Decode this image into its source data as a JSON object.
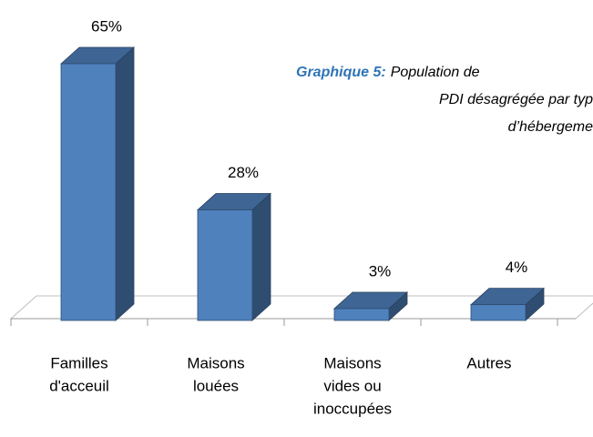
{
  "chart_data": {
    "type": "bar3d",
    "caption": {
      "label": "Graphique 5:",
      "lines": [
        "Population de",
        "PDI désagrégée par typ",
        "d’hébergeme"
      ]
    },
    "categories": [
      [
        "Familles",
        "d'acceuil"
      ],
      [
        "Maisons",
        "louées"
      ],
      [
        "Maisons",
        "vides ou",
        "inoccupées"
      ],
      [
        "Autres"
      ]
    ],
    "values": [
      65,
      28,
      3,
      4
    ],
    "value_labels": [
      "65%",
      "28%",
      "3%",
      "4%"
    ],
    "color": "#4f81bd"
  }
}
